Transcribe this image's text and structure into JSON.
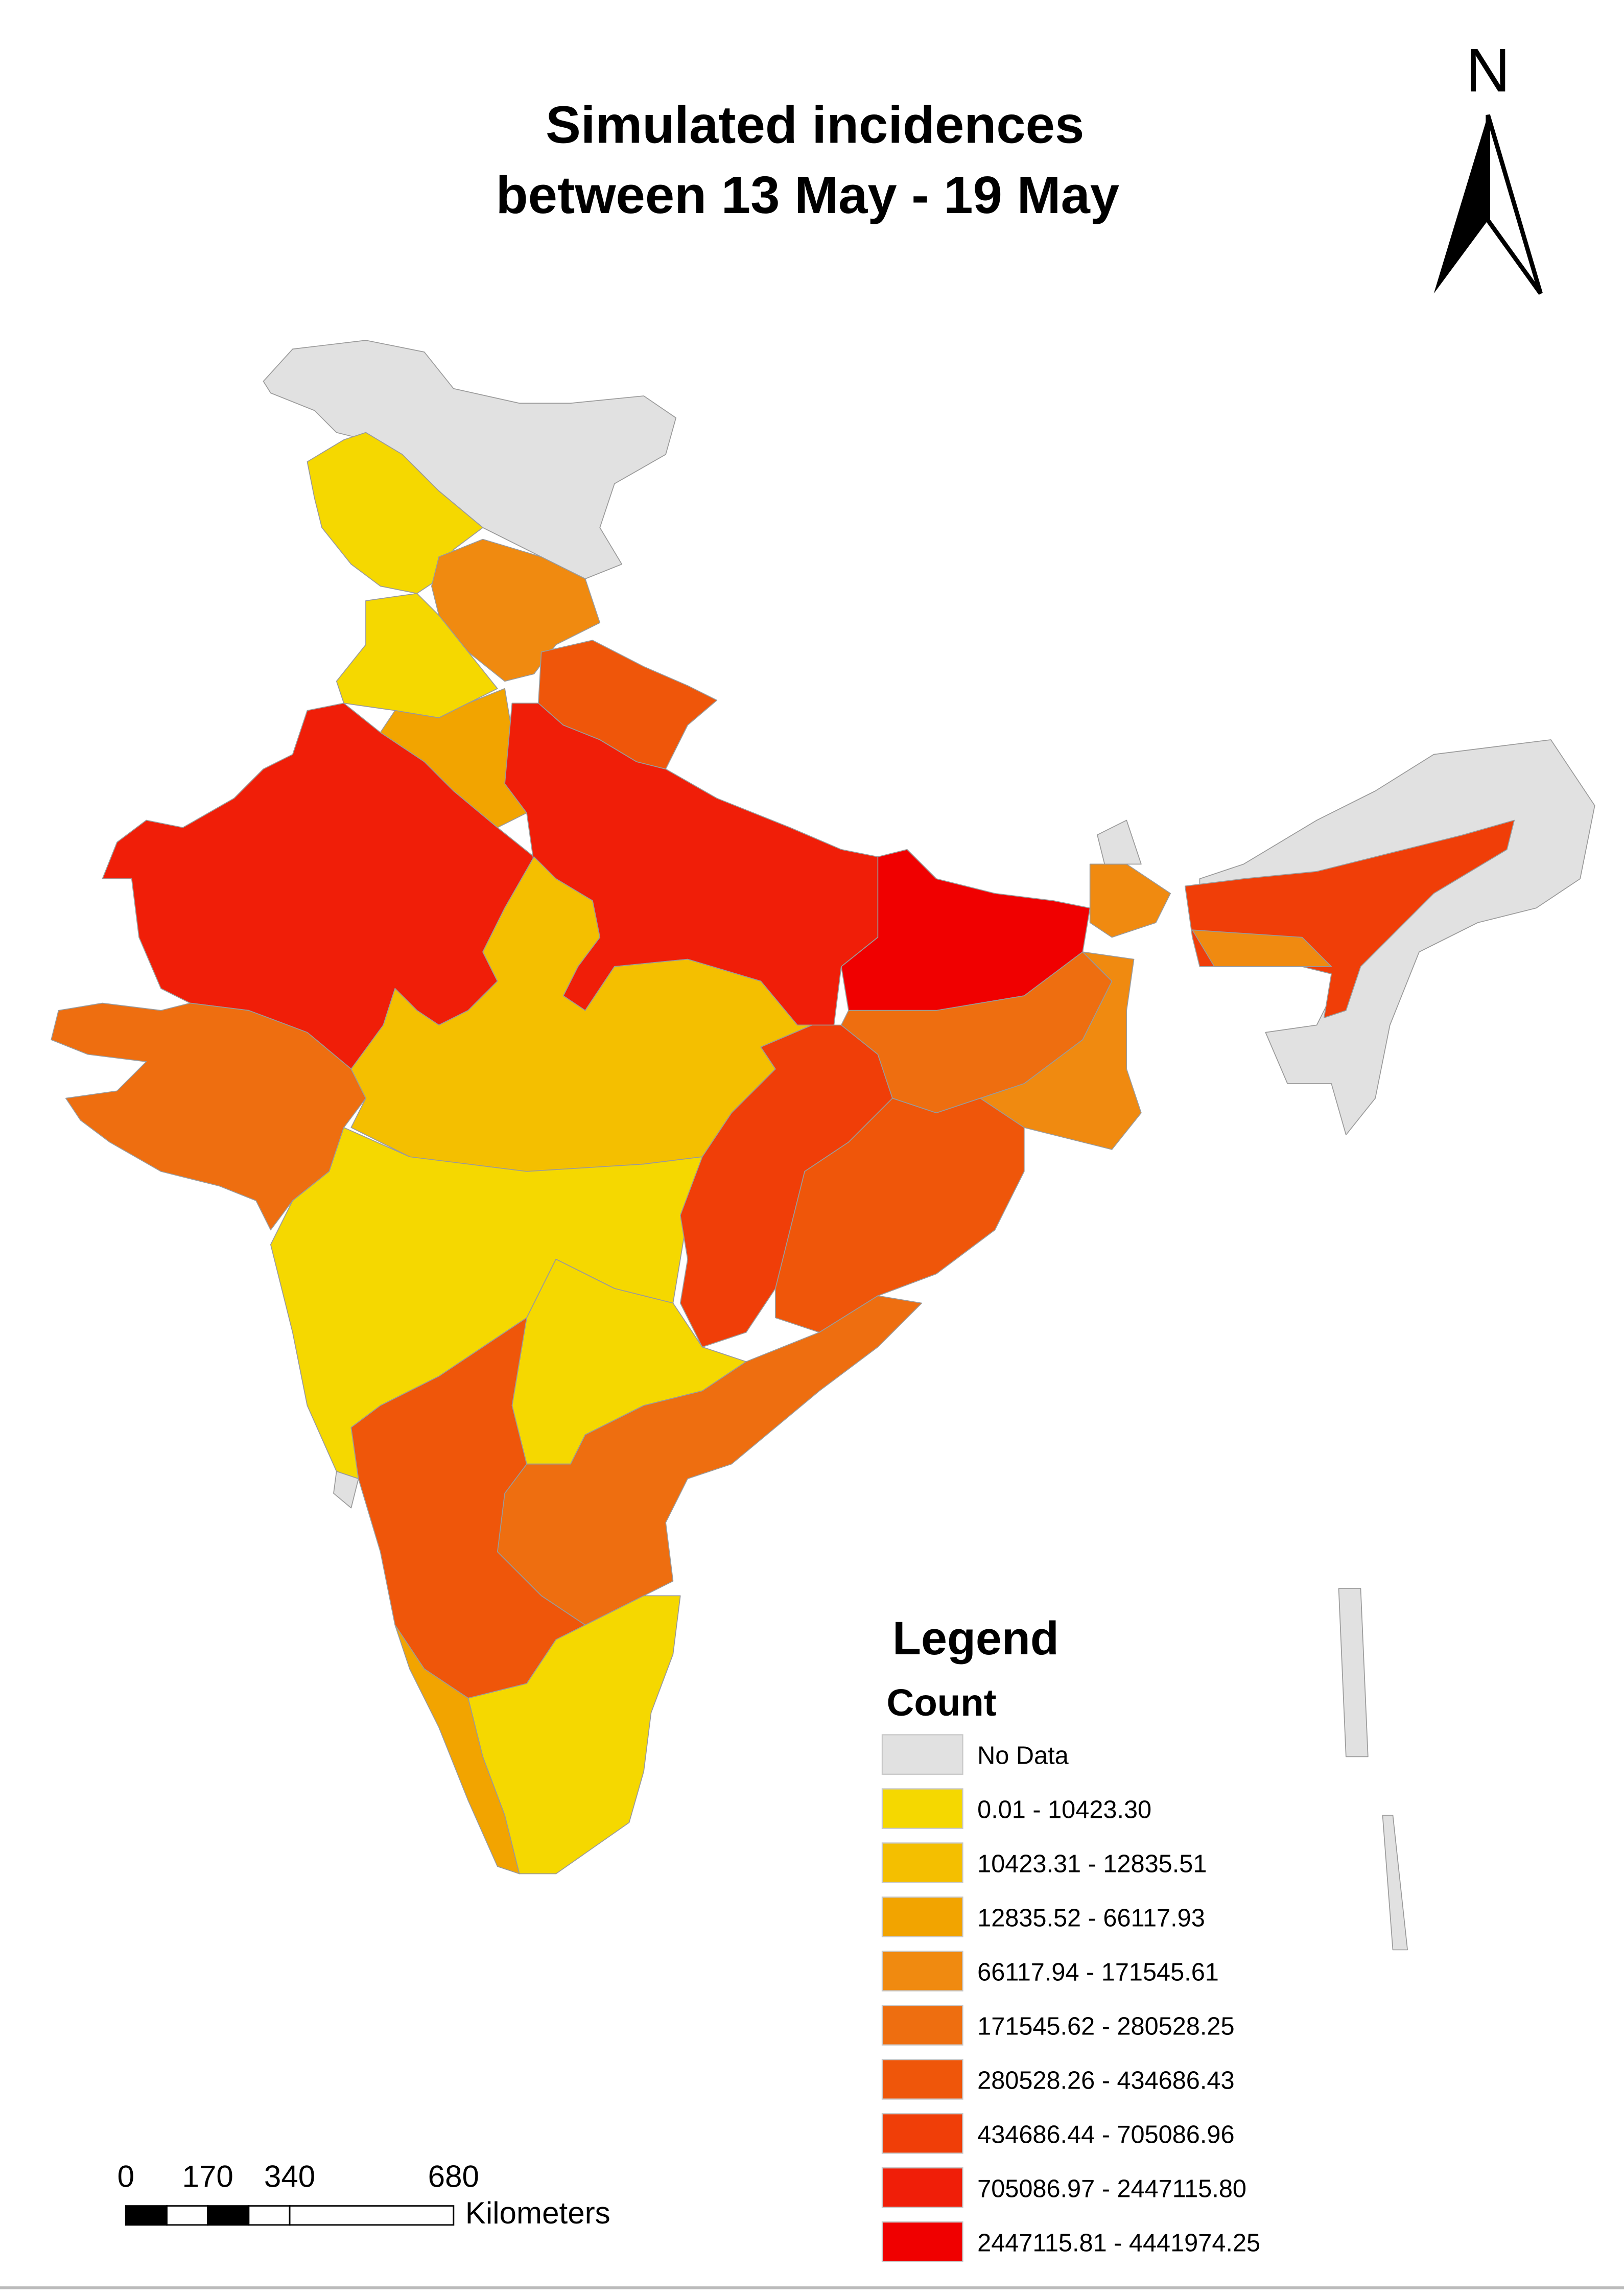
{
  "title": [
    "Simulated incidences",
    "between 13 May - 19 May"
  ],
  "north": "N",
  "legend": {
    "title": "Legend",
    "subtitle": "Count",
    "items": [
      {
        "label": "No Data",
        "color": "#e1e1e1"
      },
      {
        "label": "0.01 - 10423.30",
        "color": "#f5d800"
      },
      {
        "label": "10423.31 - 12835.51",
        "color": "#f4bf00"
      },
      {
        "label": "12835.52 - 66117.93",
        "color": "#f2a400"
      },
      {
        "label": "66117.94 - 171545.61",
        "color": "#f08a10"
      },
      {
        "label": "171545.62 - 280528.25",
        "color": "#ee6e10"
      },
      {
        "label": "280528.26 - 434686.43",
        "color": "#ef560a"
      },
      {
        "label": "434686.44 - 705086.96",
        "color": "#f03e08"
      },
      {
        "label": "705086.97 - 2447115.80",
        "color": "#f01e08"
      },
      {
        "label": "2447115.81 - 4441974.25",
        "color": "#f00000"
      }
    ]
  },
  "scale_bar": {
    "ticks": [
      0,
      170,
      340,
      680
    ],
    "unit": "Kilometers"
  }
}
